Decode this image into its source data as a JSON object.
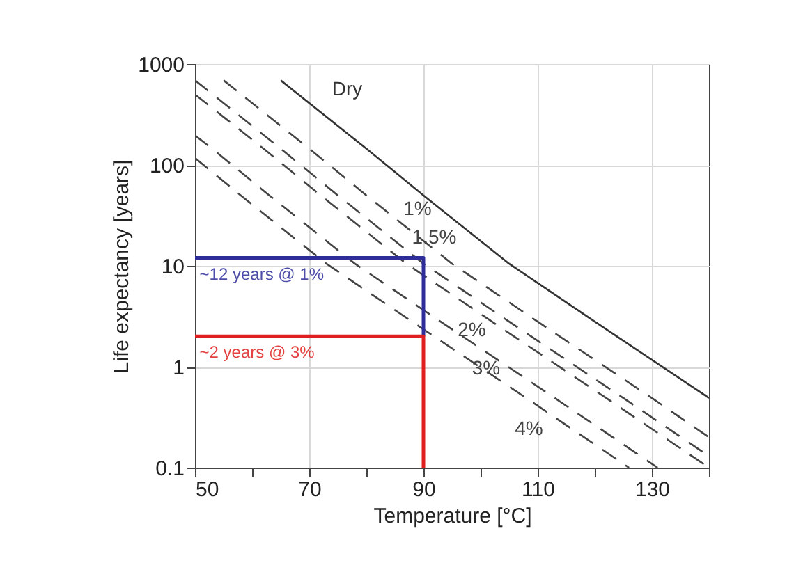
{
  "chart_data": {
    "type": "line",
    "xlabel": "Temperature [°C]",
    "ylabel": "Life expectancy [years]",
    "log": "y",
    "grid": true,
    "xlim": [
      50,
      140
    ],
    "ylim": [
      0.1,
      1000
    ],
    "xticks": [
      50,
      {
        "value": 60,
        "label": null
      },
      70,
      {
        "value": 80,
        "label": null
      },
      90,
      {
        "value": 100,
        "label": null
      },
      110,
      {
        "value": 120,
        "label": null
      },
      130,
      {
        "value": 140,
        "label": null
      }
    ],
    "yticks": [
      0.1,
      1,
      10,
      100,
      1000
    ],
    "series": [
      {
        "name": "Dry",
        "color": "#333333",
        "line_style": "solid",
        "x": [
          65,
          80,
          90,
          105,
          120,
          140
        ],
        "values": [
          690,
          145,
          50,
          10.5,
          2.8,
          0.49
        ]
      },
      {
        "name": "1%",
        "color": "#444444",
        "line_style": "dashed",
        "x": [
          55,
          70,
          80,
          95,
          110,
          130,
          140
        ],
        "values": [
          690,
          145,
          50,
          10.5,
          2.8,
          0.49,
          0.2
        ]
      },
      {
        "name": "1.5%",
        "color": "#444444",
        "line_style": "dashed",
        "x": [
          50,
          65,
          75,
          90,
          105,
          125,
          140
        ],
        "values": [
          690,
          145,
          50,
          10.5,
          2.8,
          0.49,
          0.13
        ]
      },
      {
        "name": "2%",
        "color": "#444444",
        "line_style": "dashed",
        "x": [
          50,
          62,
          72,
          87,
          102,
          122,
          140
        ],
        "values": [
          500,
          145,
          50,
          10.5,
          2.8,
          0.49,
          0.1
        ]
      },
      {
        "name": "3%",
        "color": "#444444",
        "line_style": "dashed",
        "x": [
          50,
          53,
          63,
          78,
          93,
          113,
          131
        ],
        "values": [
          196,
          145,
          50,
          10.5,
          2.8,
          0.49,
          0.1
        ]
      },
      {
        "name": "4%",
        "color": "#444444",
        "line_style": "dashed",
        "x": [
          50,
          58,
          73,
          88,
          108,
          126
        ],
        "values": [
          117,
          50,
          10.5,
          2.8,
          0.49,
          0.1
        ]
      },
      {
        "name": "~12 years @ 1%",
        "color": "#2e2e9a",
        "line_style": "solid",
        "x": [
          50,
          90,
          90
        ],
        "values": [
          12,
          12,
          2
        ]
      },
      {
        "name": "~2 years @ 3%",
        "color": "#e02020",
        "line_style": "solid",
        "x": [
          50,
          90,
          90
        ],
        "values": [
          2,
          2,
          0.1
        ]
      }
    ]
  }
}
